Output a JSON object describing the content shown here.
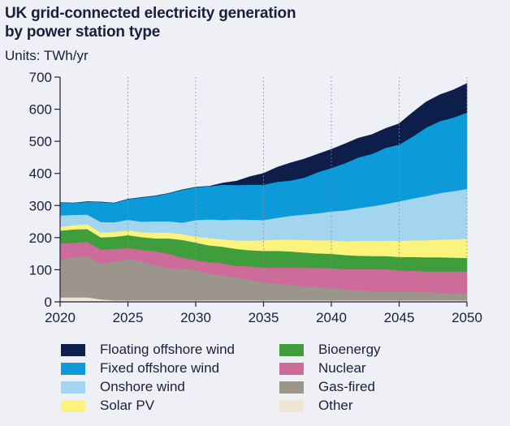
{
  "chart_data": {
    "type": "area",
    "stacked": true,
    "title_lines": [
      "UK grid-connected electricity generation",
      "by power station type"
    ],
    "units_label": "Units: TWh/yr",
    "xlabel": "",
    "ylabel": "",
    "xlim": [
      2020,
      2050
    ],
    "ylim": [
      0,
      700
    ],
    "x_ticks": [
      2020,
      2025,
      2030,
      2035,
      2040,
      2045,
      2050
    ],
    "y_ticks": [
      0,
      100,
      200,
      300,
      400,
      500,
      600,
      700
    ],
    "vertical_gridlines": true,
    "gridline_style": "dotted",
    "x": [
      2020,
      2021,
      2022,
      2023,
      2024,
      2025,
      2026,
      2027,
      2028,
      2029,
      2030,
      2031,
      2032,
      2033,
      2034,
      2035,
      2036,
      2037,
      2038,
      2039,
      2040,
      2041,
      2042,
      2043,
      2044,
      2045,
      2046,
      2047,
      2048,
      2049,
      2050
    ],
    "series": [
      {
        "name": "Other",
        "color": "#f1e6d6",
        "values": [
          14,
          14,
          14,
          8,
          5,
          5,
          5,
          5,
          5,
          5,
          5,
          5,
          5,
          5,
          5,
          5,
          5,
          5,
          5,
          5,
          5,
          5,
          5,
          5,
          5,
          5,
          5,
          5,
          5,
          5,
          5
        ]
      },
      {
        "name": "Gas-fired",
        "color": "#9b958c",
        "values": [
          118,
          125,
          128,
          110,
          120,
          128,
          122,
          108,
          100,
          98,
          95,
          82,
          78,
          72,
          64,
          55,
          51,
          48,
          44,
          41,
          38,
          34,
          30,
          28,
          27,
          26,
          26,
          25,
          24,
          22,
          20
        ]
      },
      {
        "name": "Nuclear",
        "color": "#cd6b9a",
        "values": [
          50,
          45,
          45,
          45,
          40,
          35,
          35,
          45,
          45,
          35,
          30,
          37,
          37,
          35,
          42,
          47,
          51,
          54,
          57,
          60,
          62,
          63,
          67,
          69,
          70,
          67,
          66,
          65,
          66,
          68,
          70
        ]
      },
      {
        "name": "Bioenergy",
        "color": "#3f9e3b",
        "values": [
          40,
          42,
          40,
          38,
          38,
          40,
          40,
          40,
          48,
          55,
          55,
          52,
          52,
          53,
          50,
          52,
          52,
          50,
          48,
          45,
          45,
          44,
          42,
          41,
          41,
          42,
          43,
          44,
          44,
          43,
          42
        ]
      },
      {
        "name": "Solar PV",
        "color": "#fbf37b",
        "values": [
          12,
          13,
          15,
          15,
          15,
          15,
          15,
          18,
          18,
          18,
          18,
          23,
          23,
          26,
          30,
          33,
          35,
          37,
          39,
          41,
          42,
          43,
          46,
          47,
          48,
          50,
          52,
          53,
          55,
          57,
          60
        ]
      },
      {
        "name": "Onshore wind",
        "color": "#a3d6ee",
        "values": [
          35,
          32,
          30,
          33,
          30,
          33,
          33,
          35,
          35,
          36,
          52,
          58,
          60,
          66,
          65,
          63,
          68,
          74,
          79,
          84,
          90,
          96,
          102,
          108,
          114,
          123,
          130,
          138,
          145,
          150,
          155
        ]
      },
      {
        "name": "Fixed offshore wind",
        "color": "#0c9ad8",
        "values": [
          40,
          37,
          40,
          62,
          60,
          64,
          75,
          79,
          87,
          102,
          102,
          103,
          110,
          107,
          109,
          110,
          112,
          110,
          115,
          128,
          135,
          147,
          158,
          163,
          175,
          177,
          193,
          213,
          224,
          229,
          238
        ]
      },
      {
        "name": "Floating offshore wind",
        "color": "#0e1e4a",
        "values": [
          0,
          0,
          0,
          0,
          0,
          0,
          0,
          0,
          0,
          0,
          0,
          0,
          5,
          12,
          25,
          35,
          45,
          55,
          58,
          56,
          58,
          60,
          60,
          60,
          60,
          65,
          75,
          80,
          82,
          86,
          90
        ]
      }
    ]
  },
  "legend": {
    "left_column": [
      "Floating offshore wind",
      "Fixed offshore wind",
      "Onshore wind",
      "Solar PV"
    ],
    "right_column": [
      "Bioenergy",
      "Nuclear",
      "Gas-fired",
      "Other"
    ]
  }
}
